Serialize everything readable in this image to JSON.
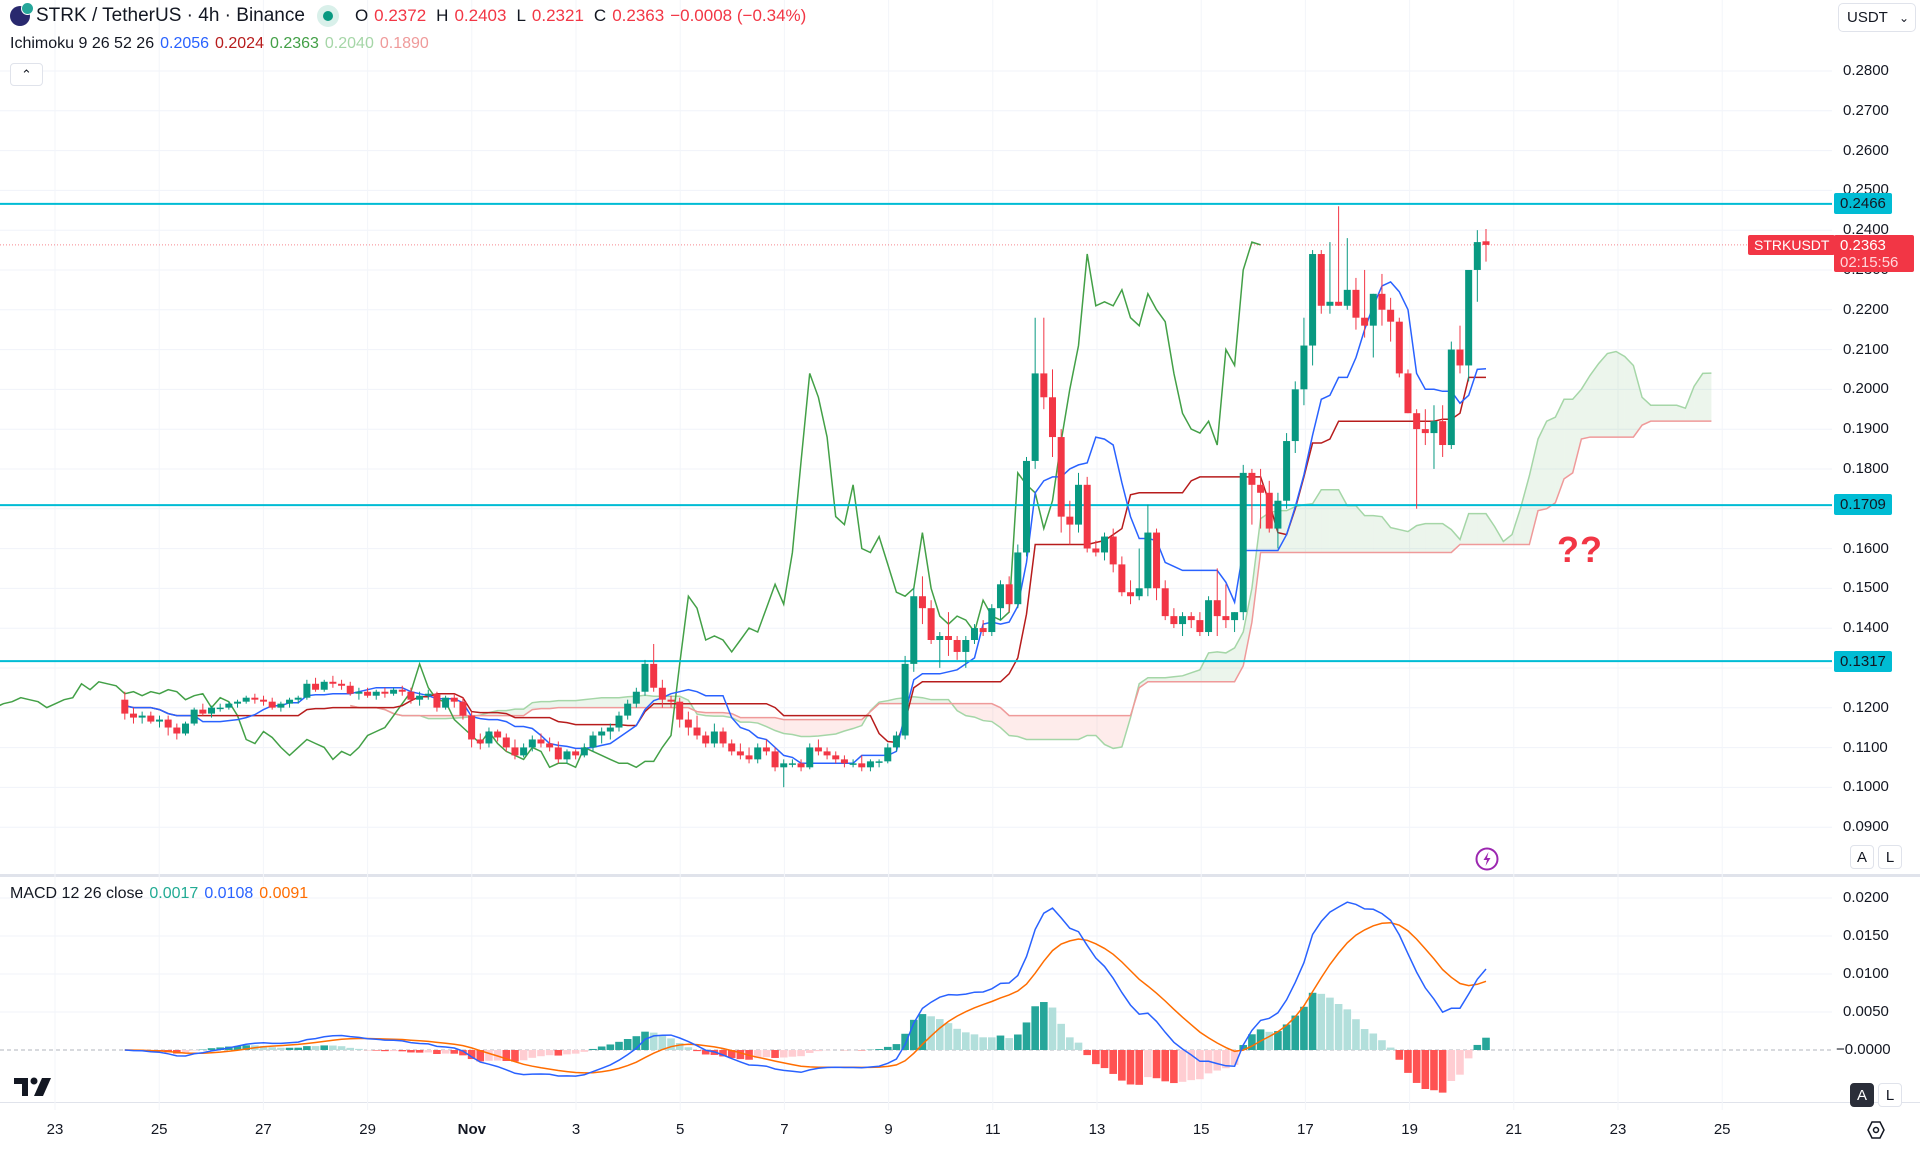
{
  "header": {
    "symbol_title": "STRK / TetherUS · 4h · Binance",
    "ohlc": [
      {
        "k": "O",
        "v": "0.2372"
      },
      {
        "k": "H",
        "v": "0.2403"
      },
      {
        "k": "L",
        "v": "0.2321"
      },
      {
        "k": "C",
        "v": "0.2363"
      }
    ],
    "change": "−0.0008 (−0.34%)",
    "currency": "USDT"
  },
  "ichimoku": {
    "label": "Ichimoku 9 26 52 26",
    "values": [
      {
        "v": "0.2056",
        "color": "#2962ff"
      },
      {
        "v": "0.2024",
        "color": "#b71c1c"
      },
      {
        "v": "0.2363",
        "color": "#43a047"
      },
      {
        "v": "0.2040",
        "color": "#a5d6a7"
      },
      {
        "v": "0.1890",
        "color": "#ef9a9a"
      }
    ]
  },
  "macd": {
    "label": "MACD 12 26 close",
    "values": [
      {
        "v": "0.0017",
        "color": "#22ab94"
      },
      {
        "v": "0.0108",
        "color": "#2962ff"
      },
      {
        "v": "0.0091",
        "color": "#ff6d00"
      }
    ],
    "axis": [
      "0.0200",
      "0.0150",
      "0.0100",
      "0.0050",
      "−0.0000"
    ]
  },
  "price_axis": [
    "0.2800",
    "0.2700",
    "0.2600",
    "0.2500",
    "0.2400",
    "0.2300",
    "0.2200",
    "0.2100",
    "0.2000",
    "0.1900",
    "0.1800",
    "0.1700",
    "0.1600",
    "0.1500",
    "0.1400",
    "0.1300",
    "0.1200",
    "0.1100",
    "0.1000",
    "0.0900"
  ],
  "horizontal_lines": [
    {
      "price": 0.2466,
      "label": "0.2466",
      "color": "#00bcd4"
    },
    {
      "price": 0.1709,
      "label": "0.1709",
      "color": "#00bcd4"
    },
    {
      "price": 0.1317,
      "label": "0.1317",
      "color": "#00bcd4"
    }
  ],
  "last_price": {
    "symbol": "STRKUSDT",
    "price": "0.2363",
    "countdown": "02:15:56"
  },
  "annotation": "??",
  "time_axis": [
    "23",
    "25",
    "27",
    "29",
    "Nov",
    "3",
    "5",
    "7",
    "9",
    "11",
    "13",
    "15",
    "17",
    "19",
    "21",
    "23",
    "25"
  ],
  "buttons": {
    "collapse": "⌃",
    "auto": "A",
    "log": "L",
    "currency_caret": "⌄"
  },
  "colors": {
    "up": "#089981",
    "down": "#f23645",
    "line": "#00bcd4"
  },
  "chart_data": {
    "type": "candlestick",
    "title": "STRK / TetherUS · 4h · Binance",
    "ylabel": "USDT",
    "ylim": [
      0.085,
      0.285
    ],
    "candles": [
      [
        0.122,
        0.124,
        0.117,
        0.1185
      ],
      [
        0.1185,
        0.12,
        0.116,
        0.1175
      ],
      [
        0.1175,
        0.119,
        0.116,
        0.118
      ],
      [
        0.118,
        0.119,
        0.116,
        0.1165
      ],
      [
        0.1165,
        0.118,
        0.115,
        0.117
      ],
      [
        0.117,
        0.118,
        0.113,
        0.115
      ],
      [
        0.115,
        0.116,
        0.112,
        0.1135
      ],
      [
        0.1135,
        0.1165,
        0.113,
        0.116
      ],
      [
        0.116,
        0.12,
        0.1155,
        0.1195
      ],
      [
        0.1195,
        0.121,
        0.118,
        0.1185
      ],
      [
        0.1185,
        0.1205,
        0.1175,
        0.12
      ],
      [
        0.12,
        0.121,
        0.119,
        0.12
      ],
      [
        0.12,
        0.1215,
        0.1195,
        0.121
      ],
      [
        0.121,
        0.122,
        0.12,
        0.1215
      ],
      [
        0.1215,
        0.123,
        0.121,
        0.1225
      ],
      [
        0.1225,
        0.1235,
        0.121,
        0.122
      ],
      [
        0.122,
        0.123,
        0.1205,
        0.1215
      ],
      [
        0.1215,
        0.1225,
        0.1195,
        0.12
      ],
      [
        0.12,
        0.1215,
        0.119,
        0.121
      ],
      [
        0.121,
        0.1225,
        0.12,
        0.122
      ],
      [
        0.122,
        0.123,
        0.121,
        0.1225
      ],
      [
        0.1225,
        0.127,
        0.122,
        0.126
      ],
      [
        0.126,
        0.1275,
        0.124,
        0.1245
      ],
      [
        0.1245,
        0.127,
        0.124,
        0.1265
      ],
      [
        0.1265,
        0.128,
        0.125,
        0.126
      ],
      [
        0.126,
        0.127,
        0.1245,
        0.1255
      ],
      [
        0.1255,
        0.1265,
        0.123,
        0.1235
      ],
      [
        0.1235,
        0.125,
        0.122,
        0.124
      ],
      [
        0.124,
        0.125,
        0.1225,
        0.123
      ],
      [
        0.123,
        0.1245,
        0.122,
        0.124
      ],
      [
        0.124,
        0.125,
        0.1225,
        0.1235
      ],
      [
        0.1235,
        0.125,
        0.123,
        0.1245
      ],
      [
        0.1245,
        0.1255,
        0.123,
        0.124
      ],
      [
        0.124,
        0.125,
        0.121,
        0.122
      ],
      [
        0.122,
        0.124,
        0.1205,
        0.123
      ],
      [
        0.123,
        0.1245,
        0.122,
        0.1235
      ],
      [
        0.1235,
        0.124,
        0.119,
        0.12
      ],
      [
        0.12,
        0.123,
        0.1195,
        0.1225
      ],
      [
        0.1225,
        0.1235,
        0.12,
        0.1215
      ],
      [
        0.1215,
        0.1225,
        0.117,
        0.118
      ],
      [
        0.118,
        0.119,
        0.11,
        0.112
      ],
      [
        0.112,
        0.1135,
        0.1095,
        0.111
      ],
      [
        0.111,
        0.115,
        0.11,
        0.114
      ],
      [
        0.114,
        0.1145,
        0.1115,
        0.1125
      ],
      [
        0.1125,
        0.1135,
        0.109,
        0.11
      ],
      [
        0.11,
        0.112,
        0.107,
        0.108
      ],
      [
        0.108,
        0.111,
        0.1075,
        0.11
      ],
      [
        0.11,
        0.113,
        0.109,
        0.112
      ],
      [
        0.112,
        0.1135,
        0.11,
        0.111
      ],
      [
        0.111,
        0.1125,
        0.109,
        0.11
      ],
      [
        0.11,
        0.1115,
        0.106,
        0.107
      ],
      [
        0.107,
        0.1095,
        0.106,
        0.109
      ],
      [
        0.109,
        0.1095,
        0.107,
        0.108
      ],
      [
        0.108,
        0.111,
        0.1075,
        0.11
      ],
      [
        0.11,
        0.114,
        0.109,
        0.113
      ],
      [
        0.113,
        0.115,
        0.111,
        0.114
      ],
      [
        0.114,
        0.116,
        0.112,
        0.115
      ],
      [
        0.115,
        0.119,
        0.114,
        0.118
      ],
      [
        0.118,
        0.122,
        0.117,
        0.121
      ],
      [
        0.121,
        0.125,
        0.12,
        0.124
      ],
      [
        0.124,
        0.132,
        0.123,
        0.131
      ],
      [
        0.131,
        0.136,
        0.124,
        0.125
      ],
      [
        0.125,
        0.127,
        0.12,
        0.122
      ],
      [
        0.122,
        0.123,
        0.12,
        0.1215
      ],
      [
        0.1215,
        0.1225,
        0.115,
        0.117
      ],
      [
        0.117,
        0.119,
        0.113,
        0.115
      ],
      [
        0.115,
        0.118,
        0.112,
        0.113
      ],
      [
        0.113,
        0.114,
        0.11,
        0.111
      ],
      [
        0.111,
        0.116,
        0.11,
        0.114
      ],
      [
        0.114,
        0.115,
        0.11,
        0.111
      ],
      [
        0.111,
        0.112,
        0.108,
        0.109
      ],
      [
        0.109,
        0.111,
        0.107,
        0.108
      ],
      [
        0.108,
        0.11,
        0.106,
        0.107
      ],
      [
        0.107,
        0.111,
        0.106,
        0.11
      ],
      [
        0.11,
        0.112,
        0.108,
        0.109
      ],
      [
        0.109,
        0.11,
        0.104,
        0.105
      ],
      [
        0.105,
        0.107,
        0.1,
        0.106
      ],
      [
        0.106,
        0.107,
        0.105,
        0.106
      ],
      [
        0.106,
        0.107,
        0.104,
        0.105
      ],
      [
        0.105,
        0.111,
        0.1045,
        0.11
      ],
      [
        0.11,
        0.112,
        0.108,
        0.109
      ],
      [
        0.109,
        0.11,
        0.107,
        0.108
      ],
      [
        0.108,
        0.109,
        0.106,
        0.107
      ],
      [
        0.107,
        0.108,
        0.105,
        0.106
      ],
      [
        0.106,
        0.107,
        0.105,
        0.106
      ],
      [
        0.106,
        0.108,
        0.104,
        0.105
      ],
      [
        0.105,
        0.107,
        0.104,
        0.1065
      ],
      [
        0.1065,
        0.107,
        0.105,
        0.1065
      ],
      [
        0.1065,
        0.111,
        0.106,
        0.11
      ],
      [
        0.11,
        0.114,
        0.109,
        0.113
      ],
      [
        0.113,
        0.133,
        0.112,
        0.131
      ],
      [
        0.131,
        0.15,
        0.129,
        0.148
      ],
      [
        0.148,
        0.153,
        0.141,
        0.145
      ],
      [
        0.145,
        0.147,
        0.136,
        0.137
      ],
      [
        0.137,
        0.139,
        0.13,
        0.138
      ],
      [
        0.138,
        0.144,
        0.133,
        0.137
      ],
      [
        0.137,
        0.138,
        0.132,
        0.134
      ],
      [
        0.134,
        0.138,
        0.13,
        0.137
      ],
      [
        0.137,
        0.141,
        0.136,
        0.14
      ],
      [
        0.14,
        0.142,
        0.138,
        0.139
      ],
      [
        0.139,
        0.146,
        0.138,
        0.145
      ],
      [
        0.145,
        0.152,
        0.142,
        0.151
      ],
      [
        0.151,
        0.153,
        0.144,
        0.146
      ],
      [
        0.146,
        0.161,
        0.145,
        0.159
      ],
      [
        0.159,
        0.183,
        0.158,
        0.182
      ],
      [
        0.182,
        0.218,
        0.18,
        0.204
      ],
      [
        0.204,
        0.218,
        0.195,
        0.198
      ],
      [
        0.198,
        0.205,
        0.183,
        0.188
      ],
      [
        0.188,
        0.19,
        0.164,
        0.168
      ],
      [
        0.168,
        0.172,
        0.161,
        0.166
      ],
      [
        0.166,
        0.179,
        0.164,
        0.176
      ],
      [
        0.176,
        0.178,
        0.159,
        0.16
      ],
      [
        0.16,
        0.162,
        0.158,
        0.159
      ],
      [
        0.159,
        0.164,
        0.157,
        0.163
      ],
      [
        0.163,
        0.165,
        0.154,
        0.156
      ],
      [
        0.156,
        0.158,
        0.148,
        0.149
      ],
      [
        0.149,
        0.152,
        0.146,
        0.148
      ],
      [
        0.148,
        0.16,
        0.147,
        0.15
      ],
      [
        0.15,
        0.171,
        0.148,
        0.164
      ],
      [
        0.164,
        0.165,
        0.147,
        0.15
      ],
      [
        0.15,
        0.152,
        0.142,
        0.143
      ],
      [
        0.143,
        0.145,
        0.14,
        0.141
      ],
      [
        0.141,
        0.144,
        0.138,
        0.143
      ],
      [
        0.143,
        0.144,
        0.14,
        0.142
      ],
      [
        0.142,
        0.144,
        0.138,
        0.139
      ],
      [
        0.139,
        0.148,
        0.138,
        0.147
      ],
      [
        0.147,
        0.155,
        0.138,
        0.143
      ],
      [
        0.143,
        0.151,
        0.14,
        0.142
      ],
      [
        0.142,
        0.144,
        0.139,
        0.144
      ],
      [
        0.144,
        0.181,
        0.142,
        0.179
      ],
      [
        0.179,
        0.18,
        0.166,
        0.176
      ],
      [
        0.176,
        0.18,
        0.165,
        0.174
      ],
      [
        0.174,
        0.177,
        0.164,
        0.165
      ],
      [
        0.165,
        0.174,
        0.16,
        0.172
      ],
      [
        0.172,
        0.189,
        0.17,
        0.187
      ],
      [
        0.187,
        0.202,
        0.184,
        0.2
      ],
      [
        0.2,
        0.218,
        0.196,
        0.211
      ],
      [
        0.211,
        0.235,
        0.206,
        0.234
      ],
      [
        0.234,
        0.235,
        0.219,
        0.221
      ],
      [
        0.221,
        0.237,
        0.219,
        0.222
      ],
      [
        0.222,
        0.246,
        0.221,
        0.221
      ],
      [
        0.221,
        0.238,
        0.22,
        0.225
      ],
      [
        0.225,
        0.228,
        0.215,
        0.218
      ],
      [
        0.218,
        0.23,
        0.213,
        0.216
      ],
      [
        0.216,
        0.224,
        0.208,
        0.224
      ],
      [
        0.224,
        0.229,
        0.216,
        0.22
      ],
      [
        0.22,
        0.223,
        0.212,
        0.217
      ],
      [
        0.217,
        0.218,
        0.203,
        0.204
      ],
      [
        0.204,
        0.205,
        0.194,
        0.194
      ],
      [
        0.194,
        0.195,
        0.17,
        0.19
      ],
      [
        0.19,
        0.195,
        0.186,
        0.189
      ],
      [
        0.189,
        0.196,
        0.18,
        0.192
      ],
      [
        0.192,
        0.196,
        0.183,
        0.186
      ],
      [
        0.186,
        0.212,
        0.185,
        0.21
      ],
      [
        0.21,
        0.216,
        0.204,
        0.206
      ],
      [
        0.206,
        0.227,
        0.202,
        0.23
      ],
      [
        0.23,
        0.24,
        0.222,
        0.237
      ],
      [
        0.2372,
        0.2403,
        0.2321,
        0.2363
      ]
    ],
    "ichimoku_note": "conversion (blue), base (dark red), lagging span (green), cloud span A/B (light green / light red)",
    "macd_ylim": [
      -0.006,
      0.021
    ],
    "macd_last": {
      "histogram": 0.0017,
      "macd": 0.0108,
      "signal": 0.0091
    }
  }
}
